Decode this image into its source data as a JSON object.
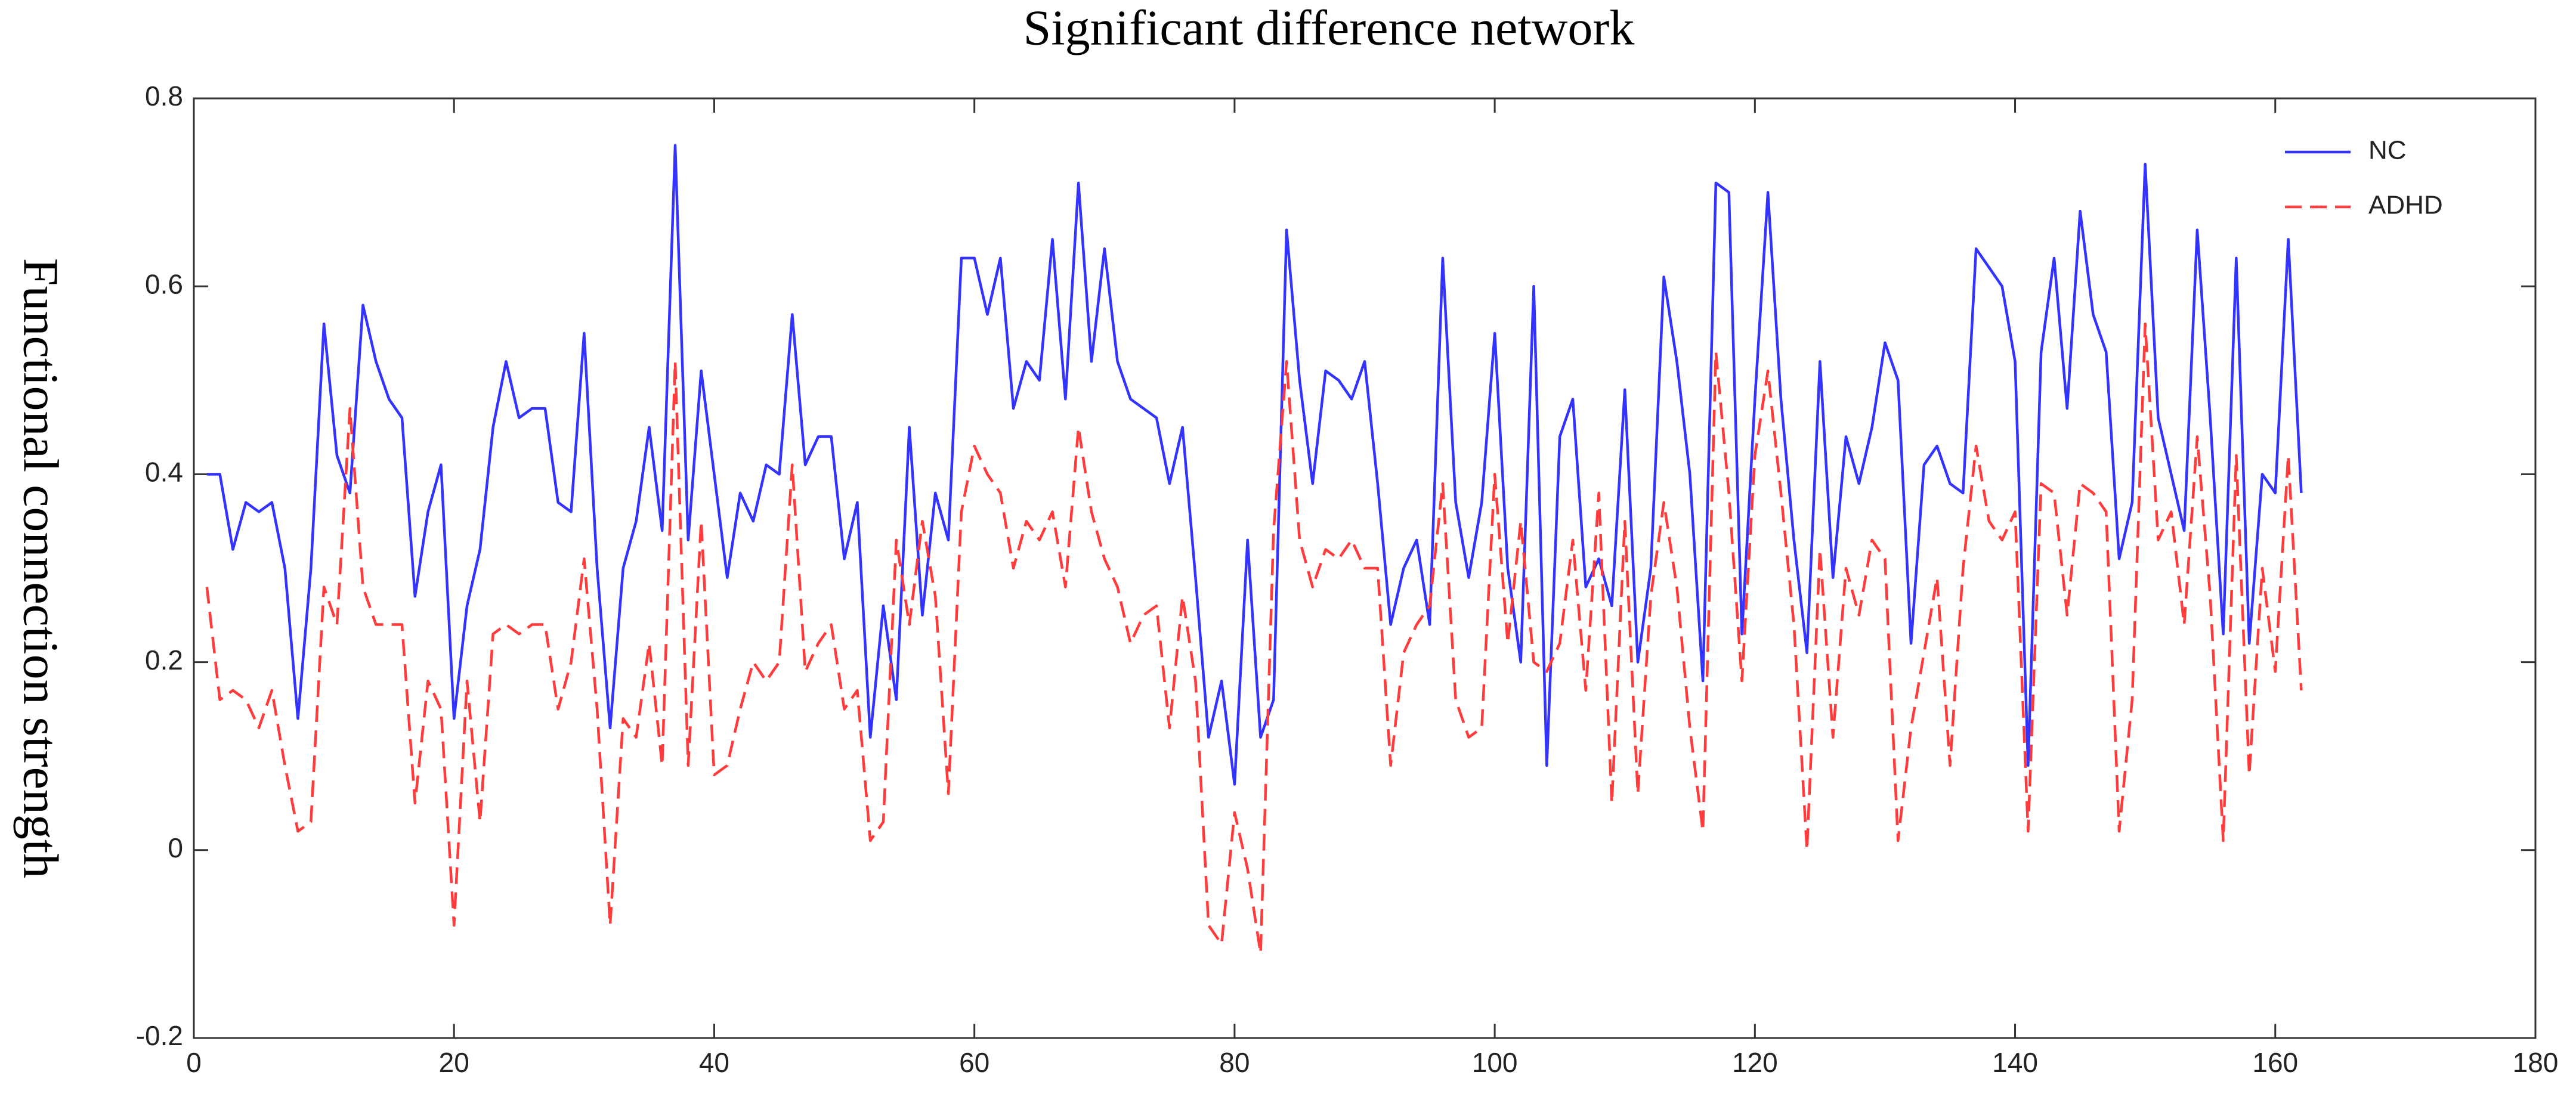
{
  "chart_data": {
    "type": "line",
    "title": "Significant difference network",
    "y_label": "Functional connection strength",
    "x": [
      1,
      2,
      3,
      4,
      5,
      6,
      7,
      8,
      9,
      10,
      11,
      12,
      13,
      14,
      15,
      16,
      17,
      18,
      19,
      20,
      21,
      22,
      23,
      24,
      25,
      26,
      27,
      28,
      29,
      30,
      31,
      32,
      33,
      34,
      35,
      36,
      37,
      38,
      39,
      40,
      41,
      42,
      43,
      44,
      45,
      46,
      47,
      48,
      49,
      50,
      51,
      52,
      53,
      54,
      55,
      56,
      57,
      58,
      59,
      60,
      61,
      62,
      63,
      64,
      65,
      66,
      67,
      68,
      69,
      70,
      71,
      72,
      73,
      74,
      75,
      76,
      77,
      78,
      79,
      80,
      81,
      82,
      83,
      84,
      85,
      86,
      87,
      88,
      89,
      90,
      91,
      92,
      93,
      94,
      95,
      96,
      97,
      98,
      99,
      100,
      101,
      102,
      103,
      104,
      105,
      106,
      107,
      108,
      109,
      110,
      111,
      112,
      113,
      114,
      115,
      116,
      117,
      118,
      119,
      120,
      121,
      122,
      123,
      124,
      125,
      126,
      127,
      128,
      129,
      130,
      131,
      132,
      133,
      134,
      135,
      136,
      137,
      138,
      139,
      140,
      141,
      142,
      143,
      144,
      145,
      146,
      147,
      148,
      149,
      150,
      151,
      152,
      153,
      154,
      155,
      156,
      157,
      158,
      159,
      160,
      161,
      162
    ],
    "series": [
      {
        "name": "NC",
        "color": "#3333ff",
        "dashed": false,
        "values": [
          0.4,
          0.4,
          0.32,
          0.37,
          0.36,
          0.37,
          0.3,
          0.14,
          0.3,
          0.56,
          0.42,
          0.38,
          0.58,
          0.52,
          0.48,
          0.46,
          0.27,
          0.36,
          0.41,
          0.14,
          0.26,
          0.32,
          0.45,
          0.52,
          0.46,
          0.47,
          0.47,
          0.37,
          0.36,
          0.55,
          0.3,
          0.13,
          0.3,
          0.35,
          0.45,
          0.34,
          0.75,
          0.33,
          0.51,
          0.4,
          0.29,
          0.38,
          0.35,
          0.41,
          0.4,
          0.57,
          0.41,
          0.44,
          0.44,
          0.31,
          0.37,
          0.12,
          0.26,
          0.16,
          0.45,
          0.25,
          0.38,
          0.33,
          0.63,
          0.63,
          0.57,
          0.63,
          0.47,
          0.52,
          0.5,
          0.65,
          0.48,
          0.71,
          0.52,
          0.64,
          0.52,
          0.48,
          0.47,
          0.46,
          0.39,
          0.45,
          0.29,
          0.12,
          0.18,
          0.07,
          0.33,
          0.12,
          0.16,
          0.66,
          0.5,
          0.39,
          0.51,
          0.5,
          0.48,
          0.52,
          0.39,
          0.24,
          0.3,
          0.33,
          0.24,
          0.63,
          0.37,
          0.29,
          0.37,
          0.55,
          0.3,
          0.2,
          0.6,
          0.09,
          0.44,
          0.48,
          0.28,
          0.31,
          0.26,
          0.49,
          0.2,
          0.3,
          0.61,
          0.52,
          0.4,
          0.18,
          0.71,
          0.7,
          0.23,
          0.48,
          0.7,
          0.48,
          0.33,
          0.21,
          0.52,
          0.29,
          0.44,
          0.39,
          0.45,
          0.54,
          0.5,
          0.22,
          0.41,
          0.43,
          0.39,
          0.38,
          0.64,
          0.62,
          0.6,
          0.52,
          0.09,
          0.53,
          0.63,
          0.47,
          0.68,
          0.57,
          0.53,
          0.31,
          0.37,
          0.73,
          0.46,
          0.4,
          0.34,
          0.66,
          0.46,
          0.23,
          0.63,
          0.22,
          0.4,
          0.38,
          0.65,
          0.38
        ]
      },
      {
        "name": "ADHD",
        "color": "#ff3b3b",
        "dashed": true,
        "values": [
          0.28,
          0.16,
          0.17,
          0.16,
          0.13,
          0.17,
          0.09,
          0.02,
          0.03,
          0.28,
          0.24,
          0.47,
          0.28,
          0.24,
          0.24,
          0.24,
          0.05,
          0.18,
          0.15,
          -0.08,
          0.18,
          0.03,
          0.23,
          0.24,
          0.23,
          0.24,
          0.24,
          0.15,
          0.2,
          0.31,
          0.15,
          -0.08,
          0.14,
          0.12,
          0.22,
          0.09,
          0.52,
          0.09,
          0.35,
          0.08,
          0.09,
          0.15,
          0.2,
          0.18,
          0.2,
          0.41,
          0.19,
          0.22,
          0.24,
          0.15,
          0.17,
          0.01,
          0.03,
          0.33,
          0.24,
          0.35,
          0.27,
          0.06,
          0.36,
          0.43,
          0.4,
          0.38,
          0.3,
          0.35,
          0.33,
          0.36,
          0.28,
          0.45,
          0.36,
          0.31,
          0.28,
          0.22,
          0.25,
          0.26,
          0.13,
          0.27,
          0.18,
          -0.08,
          -0.1,
          0.04,
          -0.02,
          -0.11,
          0.34,
          0.52,
          0.33,
          0.28,
          0.32,
          0.31,
          0.33,
          0.3,
          0.3,
          0.09,
          0.21,
          0.24,
          0.26,
          0.39,
          0.16,
          0.12,
          0.13,
          0.4,
          0.22,
          0.35,
          0.2,
          0.19,
          0.22,
          0.33,
          0.17,
          0.38,
          0.05,
          0.35,
          0.06,
          0.27,
          0.37,
          0.28,
          0.13,
          0.02,
          0.53,
          0.38,
          0.18,
          0.42,
          0.51,
          0.38,
          0.24,
          0.0,
          0.32,
          0.12,
          0.3,
          0.25,
          0.33,
          0.31,
          0.01,
          0.13,
          0.21,
          0.29,
          0.09,
          0.3,
          0.43,
          0.35,
          0.33,
          0.36,
          0.02,
          0.39,
          0.38,
          0.25,
          0.39,
          0.38,
          0.36,
          0.02,
          0.16,
          0.56,
          0.33,
          0.36,
          0.24,
          0.44,
          0.27,
          0.01,
          0.42,
          0.08,
          0.3,
          0.19,
          0.42,
          0.17
        ]
      }
    ],
    "xlim": [
      0,
      180
    ],
    "xticks": [
      0,
      20,
      40,
      60,
      80,
      100,
      120,
      140,
      160,
      180
    ],
    "ylim": [
      -0.2,
      0.8
    ],
    "yticks": [
      -0.2,
      0,
      0.2,
      0.4,
      0.6,
      0.8
    ],
    "grid": false,
    "legend": "upper right"
  }
}
